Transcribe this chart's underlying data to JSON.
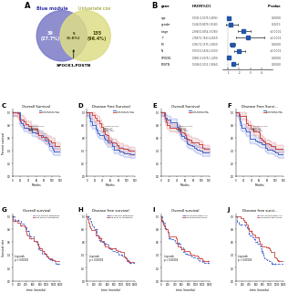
{
  "venn": {
    "circle1_label": "Blue module",
    "circle2_label": "Univariate cox",
    "circle1_count": "39\n(27.7%)",
    "overlap_count": "5\n(3.6%)",
    "circle2_count": "135\n(96.4%)",
    "overlap_label": "SPOCK1,POSTN",
    "circle1_color": "#7B7BC8",
    "circle2_color": "#DDDD88",
    "circle1_alpha": 0.85,
    "circle2_alpha": 0.85
  },
  "forest": {
    "genes": [
      "age",
      "gender",
      "stage",
      "T",
      "M",
      "N",
      "SPOCK1",
      "POSTN"
    ],
    "hr": [
      1.0391,
      1.2442,
      2.394,
      2.7887,
      1.3957,
      1.975,
      1.0861,
      1.5046
    ],
    "ci_low": [
      1.0179,
      0.8079,
      1.8654,
      1.7643,
      1.1575,
      1.5428,
      1.0279,
      1.5015
    ],
    "ci_high": [
      1.0608,
      1.916,
      3.074,
      4.2657,
      1.68,
      2.53,
      1.1478,
      1.9084
    ],
    "pvals": [
      "0.0000",
      "0.3213",
      "<0.0001",
      "<0.0001",
      "0.0000",
      "<0.0001",
      "0.0000",
      "0.0000"
    ],
    "hr_labels": [
      "1.0391(1.0179-1.0608)",
      "1.2442(0.8079-1.9160)",
      "2.3940(1.8654-3.0740)",
      "2.7887(1.7643-4.2657)",
      "1.3957(1.1575-1.6800)",
      "1.9750(1.5428-2.5300)",
      "1.0861(1.0279-1.1478)",
      "1.5046(1.5015-1.9084)"
    ]
  },
  "km_row1_titles": [
    "Overall Survival",
    "Disease Free Survival",
    "Overall Survival",
    "Disease Free Survi..."
  ],
  "km_row1_genes": [
    "SPOCK1",
    "SPOCK1",
    "POSTN",
    "POSTN"
  ],
  "km_row2_titles": [
    "Overall survival",
    "Disease free survival",
    "Overall survival",
    "Disease free survi..."
  ],
  "km_row2_genes": [
    "SPOCK1",
    "SPOCK1",
    "POSTN",
    "POSTN"
  ],
  "panel_labels_row1": [
    "C",
    "D",
    "E",
    "F"
  ],
  "panel_labels_row2": [
    "G",
    "H",
    "I",
    "J"
  ],
  "km_low_color": "#4466CC",
  "km_high_color": "#CC4444",
  "km_low_ci_color": "#8899EE",
  "km_high_ci_color": "#EE9999",
  "background": "#FFFFFF"
}
